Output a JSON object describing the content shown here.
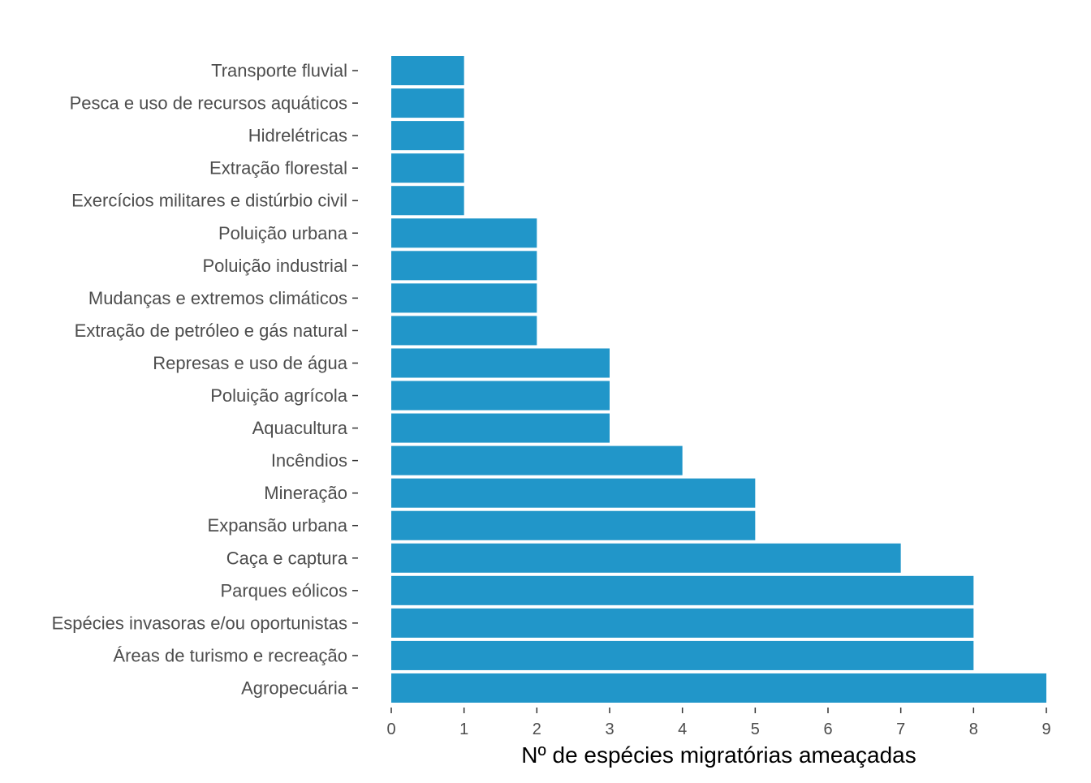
{
  "chart_data": {
    "type": "bar",
    "orientation": "horizontal",
    "title": "",
    "xlabel": "Nº de espécies migratórias ameaçadas",
    "ylabel": "",
    "xlim": [
      0,
      9
    ],
    "x_ticks": [
      "0",
      "1",
      "2",
      "3",
      "4",
      "5",
      "6",
      "7",
      "8",
      "9"
    ],
    "grid": false,
    "legend": "none",
    "bar_color": "#2196c9",
    "categories": [
      "Transporte fluvial",
      "Pesca e uso de recursos aquáticos",
      "Hidrelétricas",
      "Extração florestal",
      "Exercícios militares e distúrbio civil",
      "Poluição urbana",
      "Poluição industrial",
      "Mudanças e extremos climáticos",
      "Extração de petróleo e gás natural",
      "Represas e uso de água",
      "Poluição agrícola",
      "Aquacultura",
      "Incêndios",
      "Mineração",
      "Expansão urbana",
      "Caça e captura",
      "Parques eólicos",
      "Espécies invasoras e/ou oportunistas",
      "Áreas de turismo e recreação",
      "Agropecuária"
    ],
    "values": [
      1,
      1,
      1,
      1,
      1,
      2,
      2,
      2,
      2,
      3,
      3,
      3,
      4,
      5,
      5,
      7,
      8,
      8,
      8,
      9
    ]
  }
}
